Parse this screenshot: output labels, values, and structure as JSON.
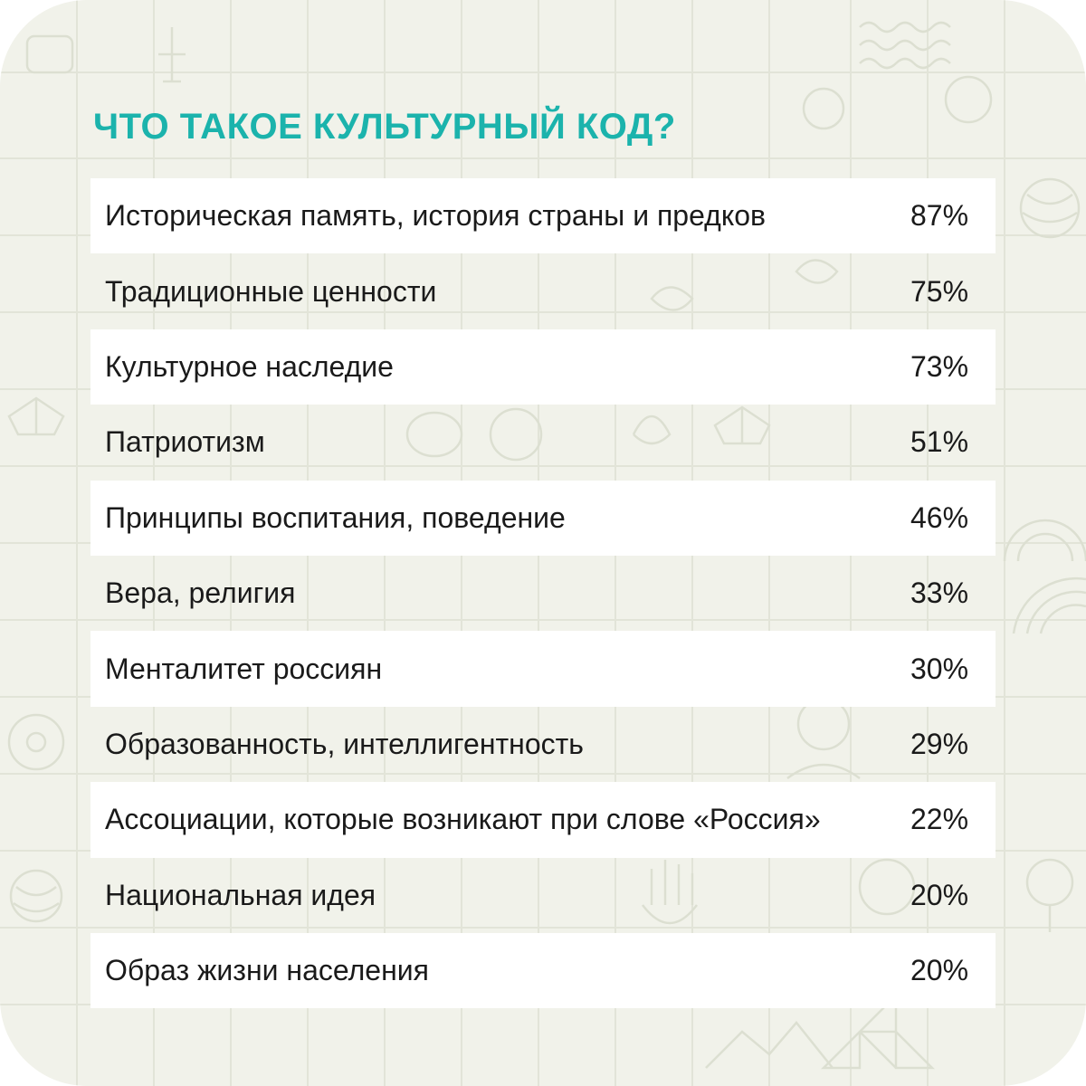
{
  "title": "ЧТО ТАКОЕ КУЛЬТУРНЫЙ КОД?",
  "colors": {
    "accent": "#1bb3ac",
    "background": "#f1f2ea",
    "row": "#ffffff",
    "text": "#1a1a1a"
  },
  "chart_data": {
    "type": "table",
    "title": "ЧТО ТАКОЕ КУЛЬТУРНЫЙ КОД?",
    "rows": [
      {
        "label": "Историческая память, история страны и предков",
        "value": "87%"
      },
      {
        "label": "Традиционные ценности",
        "value": "75%"
      },
      {
        "label": "Культурное наследие",
        "value": "73%"
      },
      {
        "label": "Патриотизм",
        "value": "51%"
      },
      {
        "label": "Принципы воспитания, поведение",
        "value": "46%"
      },
      {
        "label": "Вера, религия",
        "value": "33%"
      },
      {
        "label": "Менталитет россиян",
        "value": "30%"
      },
      {
        "label": "Образованность, интеллигентность",
        "value": "29%"
      },
      {
        "label": "Ассоциации, которые возникают при слове «Россия»",
        "value": "22%"
      },
      {
        "label": "Национальная идея",
        "value": "20%"
      },
      {
        "label": "Образ жизни населения",
        "value": "20%"
      }
    ]
  }
}
